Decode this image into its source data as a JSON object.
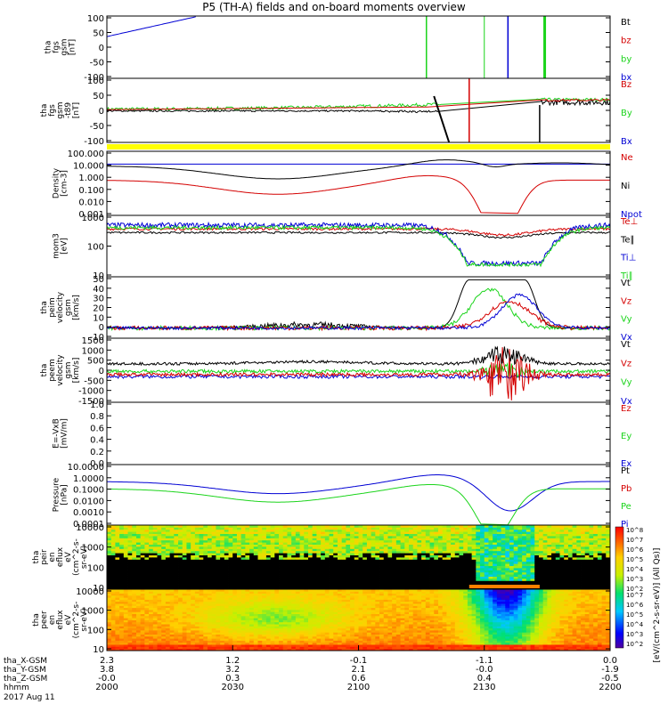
{
  "title": "P5 (TH-A) fields and on-board moments overview",
  "chart_data": [
    {
      "type": "line",
      "id": "fgs",
      "ylabel": [
        "tha",
        "fgs",
        "gsm",
        "[nT]"
      ],
      "yticks": [
        "100",
        "50",
        "0",
        "-50",
        "-100"
      ],
      "ylim": [
        -100,
        100
      ],
      "legend": [
        {
          "name": "Bt",
          "color": "#000000"
        },
        {
          "name": "bz",
          "color": "#d40000"
        },
        {
          "name": "by",
          "color": "#1bd41b"
        },
        {
          "name": "bx",
          "color": "#0000d4"
        }
      ]
    },
    {
      "type": "line",
      "id": "fgs_t89",
      "ylabel": [
        "tha",
        "fgs",
        "gsm",
        "-t89",
        "[nT]"
      ],
      "yticks": [
        "100",
        "50",
        "0",
        "-50",
        "-100"
      ],
      "ylim": [
        -120,
        120
      ],
      "legend": [
        {
          "name": "Bz",
          "color": "#d40000"
        },
        {
          "name": "By",
          "color": "#1bd41b"
        },
        {
          "name": "Bx",
          "color": "#0000d4"
        }
      ]
    },
    {
      "type": "line",
      "id": "density",
      "ylabel": [
        "Density",
        "[cm-3]"
      ],
      "yticks": [
        "100.000",
        "10.000",
        "1.000",
        "0.100",
        "0.010",
        "0.001"
      ],
      "scale": "log",
      "legend": [
        {
          "name": "Ne",
          "color": "#d40000"
        },
        {
          "name": "Ni",
          "color": "#000000"
        },
        {
          "name": "Npot",
          "color": "#0000d4"
        }
      ]
    },
    {
      "type": "line",
      "id": "temperature",
      "ylabel": [
        "mom3",
        "[eV]"
      ],
      "yticks": [
        "1000",
        "100",
        "10"
      ],
      "scale": "log",
      "legend": [
        {
          "name": "Te⊥",
          "color": "#d40000"
        },
        {
          "name": "Te∥",
          "color": "#000000"
        },
        {
          "name": "Ti⊥",
          "color": "#0000d4"
        },
        {
          "name": "Ti∥",
          "color": "#1bd41b"
        }
      ]
    },
    {
      "type": "line",
      "id": "peim",
      "ylabel": [
        "tha",
        "peim",
        "velocity",
        "gsm",
        "[km/s]"
      ],
      "yticks": [
        "50",
        "40",
        "30",
        "20",
        "10",
        "0",
        "-10"
      ],
      "ylim": [
        -10,
        50
      ],
      "legend": [
        {
          "name": "Vt",
          "color": "#000000"
        },
        {
          "name": "Vz",
          "color": "#d40000"
        },
        {
          "name": "Vy",
          "color": "#1bd41b"
        },
        {
          "name": "Vx",
          "color": "#0000d4"
        }
      ]
    },
    {
      "type": "line",
      "id": "peem",
      "ylabel": [
        "tha",
        "peem",
        "velocity",
        "gsm",
        "[km/s]"
      ],
      "yticks": [
        "1500",
        "1000",
        "500",
        "0",
        "-500",
        "-1000",
        "-1500"
      ],
      "ylim": [
        -1500,
        1500
      ],
      "legend": [
        {
          "name": "Vt",
          "color": "#000000"
        },
        {
          "name": "Vz",
          "color": "#d40000"
        },
        {
          "name": "Vy",
          "color": "#1bd41b"
        },
        {
          "name": "Vx",
          "color": "#0000d4"
        }
      ]
    },
    {
      "type": "line",
      "id": "efield",
      "ylabel": [
        "E=-VxB",
        "[mV/m]"
      ],
      "yticks": [
        "1.0",
        "0.8",
        "0.6",
        "0.4",
        "0.2",
        "0.0"
      ],
      "ylim": [
        0,
        1
      ],
      "legend": [
        {
          "name": "Ez",
          "color": "#d40000"
        },
        {
          "name": "Ey",
          "color": "#1bd41b"
        },
        {
          "name": "Ex",
          "color": "#0000d4"
        }
      ]
    },
    {
      "type": "line",
      "id": "pressure",
      "ylabel": [
        "Pressure",
        "[nPa]"
      ],
      "yticks": [
        "10.0000",
        "1.0000",
        "0.1000",
        "0.0100",
        "0.0010",
        "0.0001"
      ],
      "scale": "log",
      "legend": [
        {
          "name": "Pt",
          "color": "#000000"
        },
        {
          "name": "Pb",
          "color": "#d40000"
        },
        {
          "name": "Pe",
          "color": "#1bd41b"
        },
        {
          "name": "Pi",
          "color": "#0000d4"
        }
      ]
    },
    {
      "type": "heatmap",
      "id": "peir",
      "ylabel": [
        "tha",
        "peir",
        "en",
        "eflux",
        "eV",
        "(cm^2-s-",
        "sr-eV)"
      ],
      "yticks": [
        "10000",
        "1000",
        "100",
        "10"
      ],
      "scale": "log"
    },
    {
      "type": "heatmap",
      "id": "peer",
      "ylabel": [
        "tha",
        "peer",
        "en",
        "eflux",
        "eV",
        "(cm^2-s-",
        "sr-eV)"
      ],
      "yticks": [
        "10000",
        "1000",
        "100",
        "10"
      ],
      "scale": "log"
    }
  ],
  "colorbar": {
    "label": "[eV/(cm^2-s-sr-eV)] (All Qs)]",
    "ticks_top": [
      "10^8",
      "10^7",
      "10^6",
      "10^5",
      "10^4",
      "10^3",
      "10^2"
    ],
    "ticks_bottom": [
      "10^7",
      "10^6",
      "10^5",
      "10^4",
      "10^3",
      "10^2"
    ]
  },
  "xaxis": {
    "rows": [
      {
        "label": "tha_X-GSM",
        "values": [
          "2.3",
          "1.2",
          "-0.1",
          "-1.1",
          "0.0"
        ]
      },
      {
        "label": "tha_Y-GSM",
        "values": [
          "3.8",
          "3.2",
          "2.1",
          "-0.0",
          "-1.9"
        ]
      },
      {
        "label": "tha_Z-GSM",
        "values": [
          "-0.0",
          "0.3",
          "0.6",
          "0.4",
          "-0.5"
        ]
      },
      {
        "label": "hhmm",
        "values": [
          "2000",
          "2030",
          "2100",
          "2130",
          "2200"
        ]
      }
    ],
    "date": "2017 Aug 11"
  }
}
